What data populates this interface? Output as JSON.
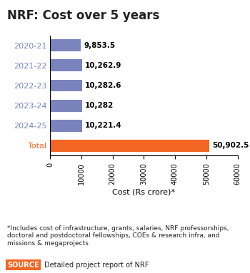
{
  "chart_data": {
    "type": "bar",
    "orientation": "horizontal",
    "title": "NRF: Cost over 5 years",
    "categories": [
      "2020-21",
      "2021-22",
      "2022-23",
      "2023-24",
      "2024-25",
      "Total"
    ],
    "values": [
      9853.5,
      10262.9,
      10282.6,
      10282,
      10221.4,
      50902.5
    ],
    "value_labels": [
      "9,853.5",
      "10,262.9",
      "10,282.6",
      "10,282",
      "10,221.4",
      "50,902.5"
    ],
    "colors": [
      "#7b83bd",
      "#7b83bd",
      "#7b83bd",
      "#7b83bd",
      "#7b83bd",
      "#f26522"
    ],
    "data_labels": true,
    "xlabel": "Cost (Rs crore)*",
    "xlim": [
      0,
      60000
    ],
    "xticks": [
      0,
      10000,
      20000,
      30000,
      40000,
      50000,
      60000
    ],
    "footnote": "*Includes cost of infrastructure, grants, salaries, NRF professorships, doctoral and postdoctoral fellowships, COEs & research infra, and missions & megaprojects",
    "source_label": "SOURCE",
    "source": "Detailed project report of NRF"
  }
}
